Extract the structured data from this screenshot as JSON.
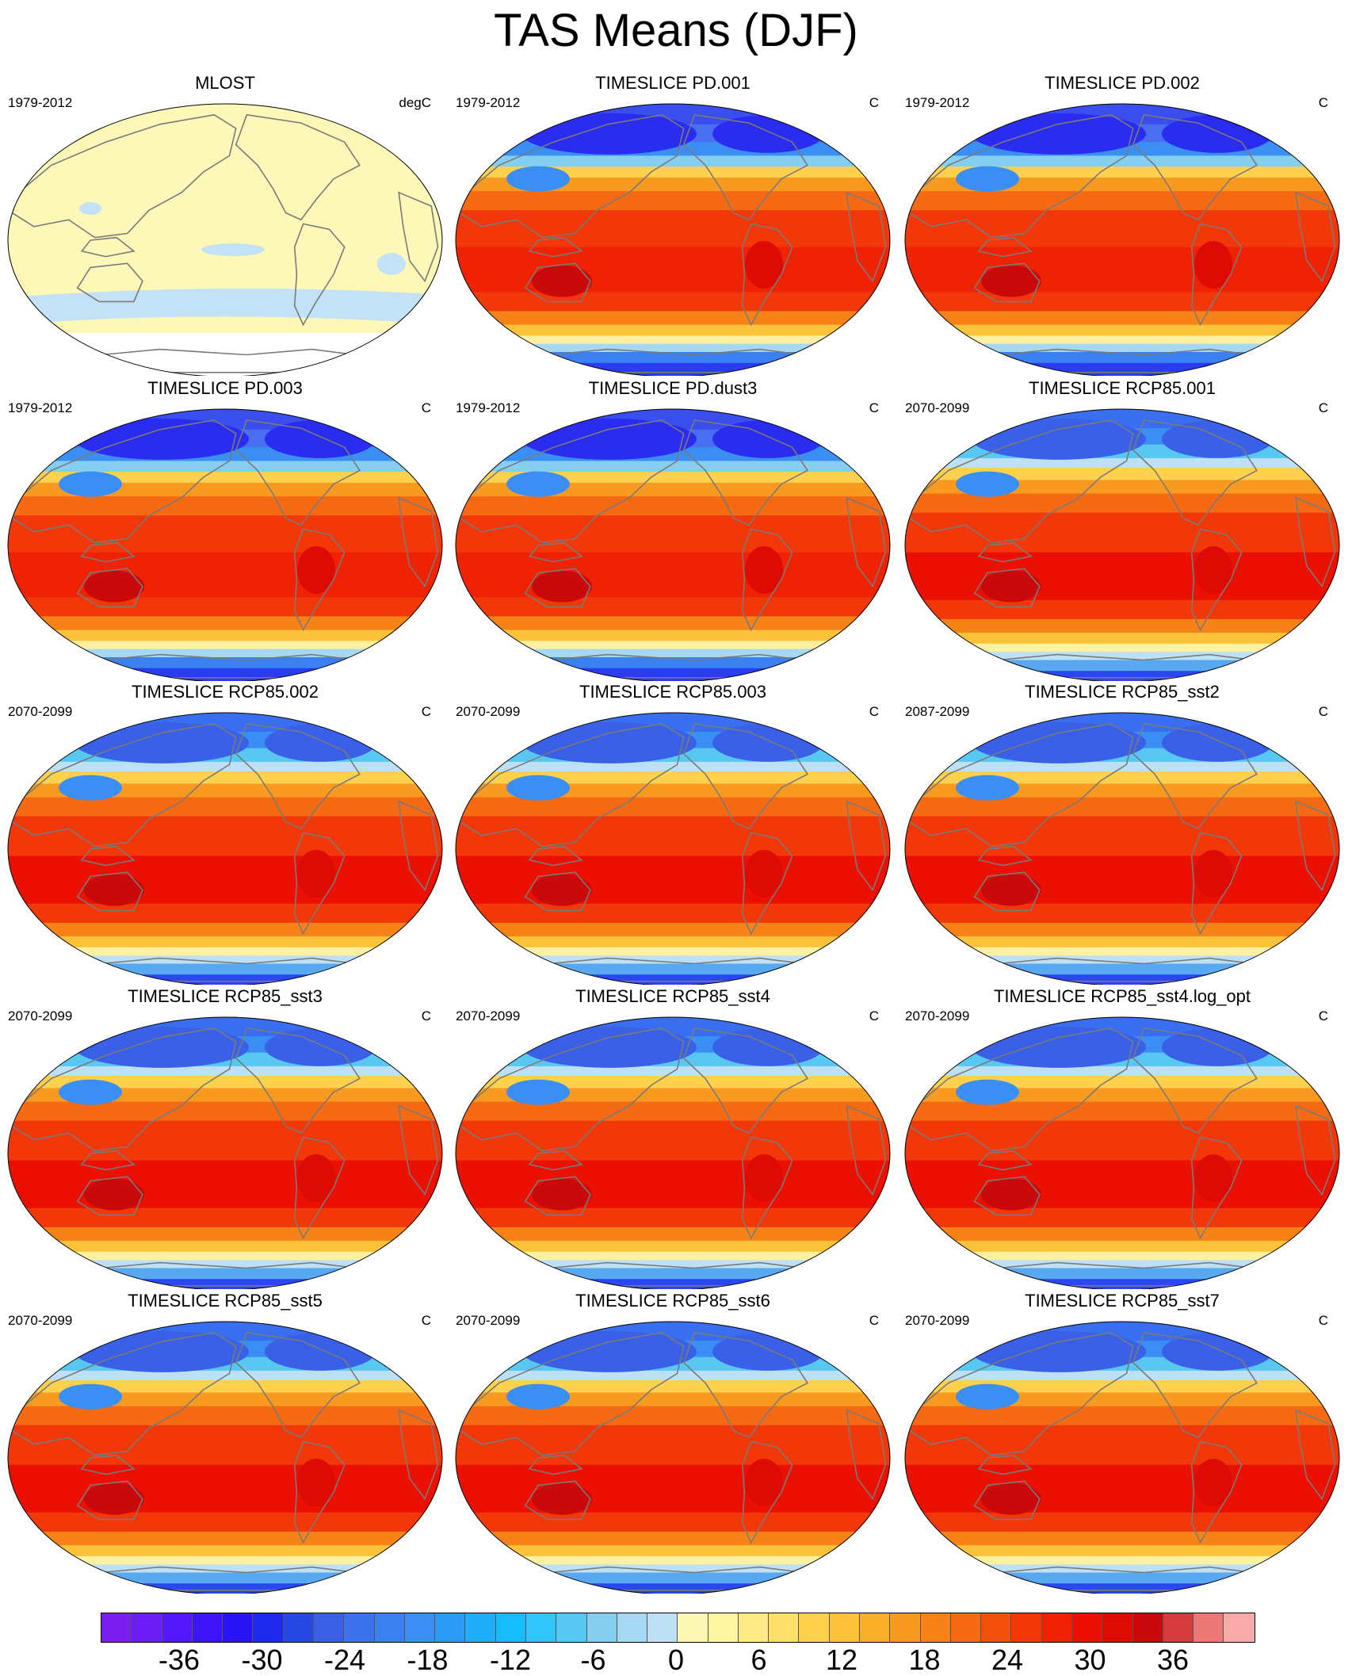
{
  "title": "TAS Means (DJF)",
  "panels": [
    {
      "title": "MLOST",
      "period": "1979-2012",
      "units": "degC",
      "kind": "obs"
    },
    {
      "title": "TIMESLICE PD.001",
      "period": "1979-2012",
      "units": "C",
      "kind": "pd"
    },
    {
      "title": "TIMESLICE PD.002",
      "period": "1979-2012",
      "units": "C",
      "kind": "pd"
    },
    {
      "title": "TIMESLICE PD.003",
      "period": "1979-2012",
      "units": "C",
      "kind": "pd"
    },
    {
      "title": "TIMESLICE PD.dust3",
      "period": "1979-2012",
      "units": "C",
      "kind": "pd"
    },
    {
      "title": "TIMESLICE RCP85.001",
      "period": "2070-2099",
      "units": "C",
      "kind": "rcp"
    },
    {
      "title": "TIMESLICE RCP85.002",
      "period": "2070-2099",
      "units": "C",
      "kind": "rcp"
    },
    {
      "title": "TIMESLICE RCP85.003",
      "period": "2070-2099",
      "units": "C",
      "kind": "rcp"
    },
    {
      "title": "TIMESLICE RCP85_sst2",
      "period": "2087-2099",
      "units": "C",
      "kind": "rcp"
    },
    {
      "title": "TIMESLICE RCP85_sst3",
      "period": "2070-2099",
      "units": "C",
      "kind": "rcp"
    },
    {
      "title": "TIMESLICE RCP85_sst4",
      "period": "2070-2099",
      "units": "C",
      "kind": "rcp"
    },
    {
      "title": "TIMESLICE RCP85_sst4.log_opt",
      "period": "2070-2099",
      "units": "C",
      "kind": "rcp"
    },
    {
      "title": "TIMESLICE RCP85_sst5",
      "period": "2070-2099",
      "units": "C",
      "kind": "rcp"
    },
    {
      "title": "TIMESLICE RCP85_sst6",
      "period": "2070-2099",
      "units": "C",
      "kind": "rcp"
    },
    {
      "title": "TIMESLICE RCP85_sst7",
      "period": "2070-2099",
      "units": "C",
      "kind": "rcp"
    }
  ],
  "colorbar": {
    "labels": [
      "-36",
      "-30",
      "-24",
      "-18",
      "-12",
      "-6",
      "0",
      "6",
      "12",
      "18",
      "24",
      "30",
      "36"
    ],
    "colors": [
      "#7b1ef0",
      "#6a1ef5",
      "#5418fa",
      "#3c14fa",
      "#2a14f5",
      "#1e2aee",
      "#2848e6",
      "#3a60e8",
      "#3c72ec",
      "#3a80f0",
      "#3a8ef4",
      "#2a9cf8",
      "#20aefa",
      "#18bcfc",
      "#30c6fa",
      "#58c8f2",
      "#84cef0",
      "#a6d8f2",
      "#bde0f4",
      "#fcf8b4",
      "#fff4a0",
      "#feeb88",
      "#fddf6a",
      "#fdd14e",
      "#fcc23a",
      "#fbb02a",
      "#f99a20",
      "#f78318",
      "#f56a12",
      "#f3500c",
      "#f23808",
      "#f02204",
      "#ec1002",
      "#de0a04",
      "#ca0a0a",
      "#d63a3a",
      "#ec7878",
      "#f8aaaa"
    ]
  },
  "colors": {
    "land_outline": "#7a7a7a",
    "map_border": "#000000",
    "obs_fill": "#fdf8b8",
    "obs_cool": "#c4e2f6"
  }
}
